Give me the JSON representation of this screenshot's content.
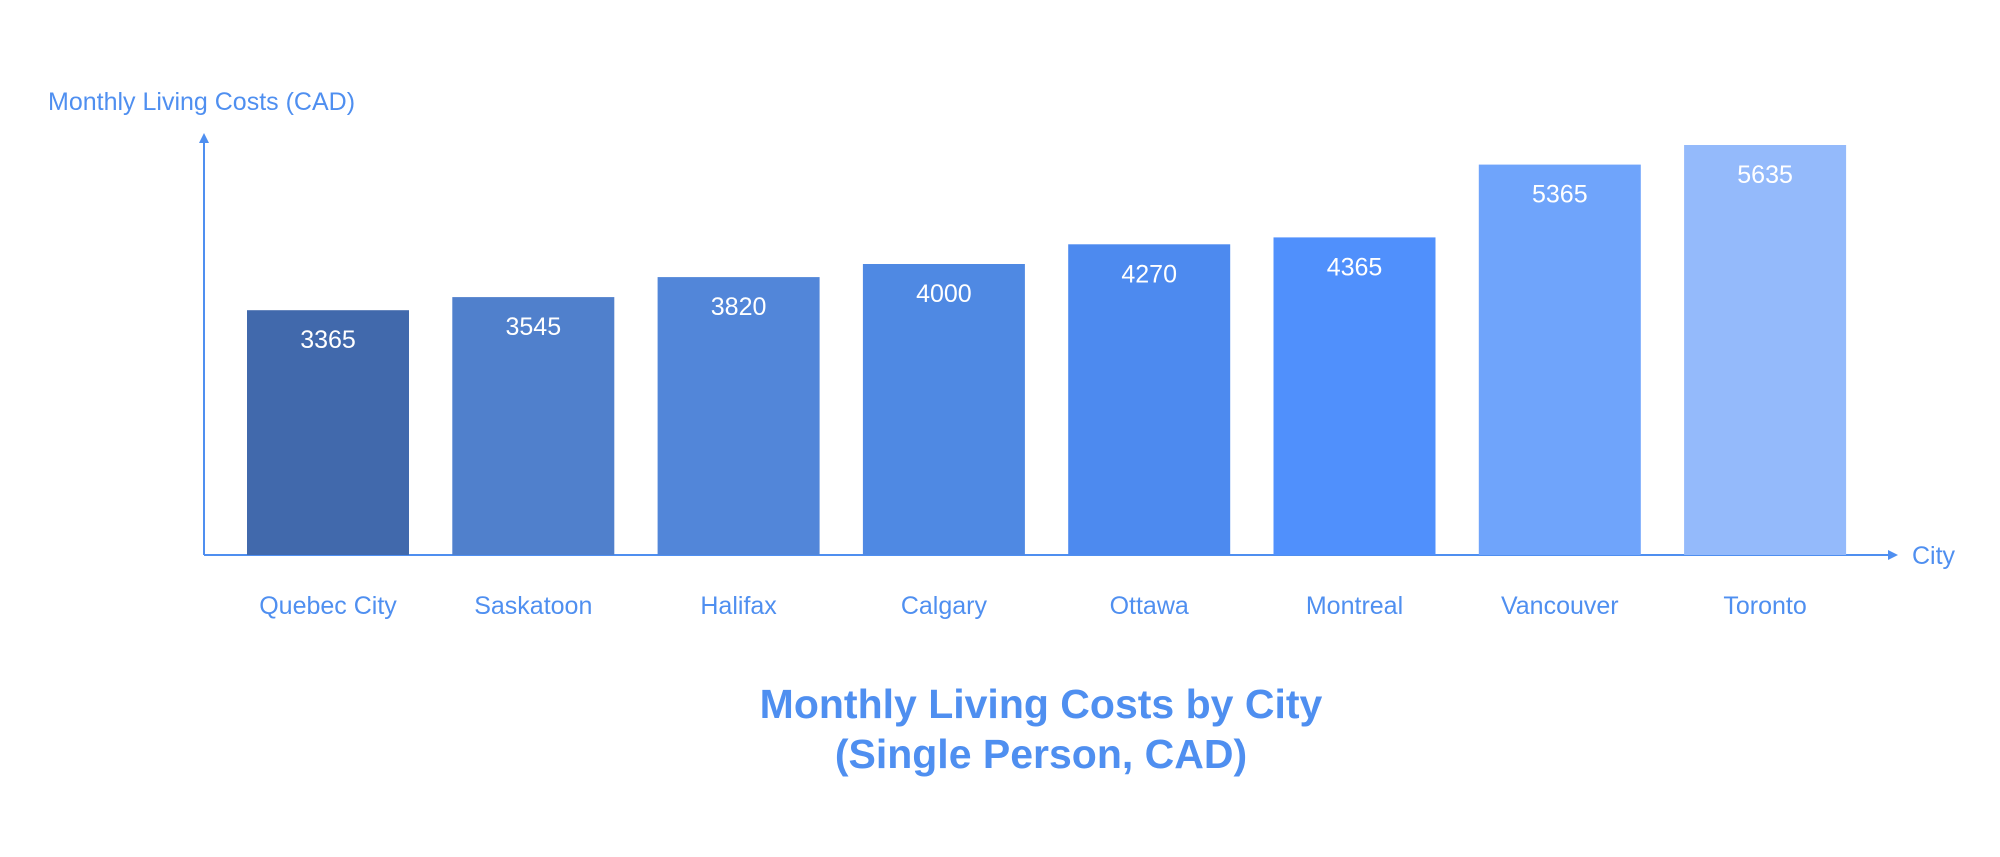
{
  "chart_data": {
    "type": "bar",
    "title_lines": [
      "Monthly Living Costs by City",
      "(Single Person, CAD)"
    ],
    "xlabel": "City",
    "ylabel": "Monthly Living Costs (CAD)",
    "categories": [
      "Quebec City",
      "Saskatoon",
      "Halifax",
      "Calgary",
      "Ottawa",
      "Montreal",
      "Vancouver",
      "Toronto"
    ],
    "values": [
      3365,
      3545,
      3820,
      4000,
      4270,
      4365,
      5365,
      5635
    ],
    "bar_colors": [
      "#4169ac",
      "#5080cc",
      "#5286d9",
      "#4f89e3",
      "#4d8aef",
      "#5090fc",
      "#6fa4fb",
      "#94bafb"
    ],
    "axis_color": "#4f8ff0",
    "ylim": [
      0,
      5635
    ],
    "grid": false,
    "legend": "none"
  }
}
